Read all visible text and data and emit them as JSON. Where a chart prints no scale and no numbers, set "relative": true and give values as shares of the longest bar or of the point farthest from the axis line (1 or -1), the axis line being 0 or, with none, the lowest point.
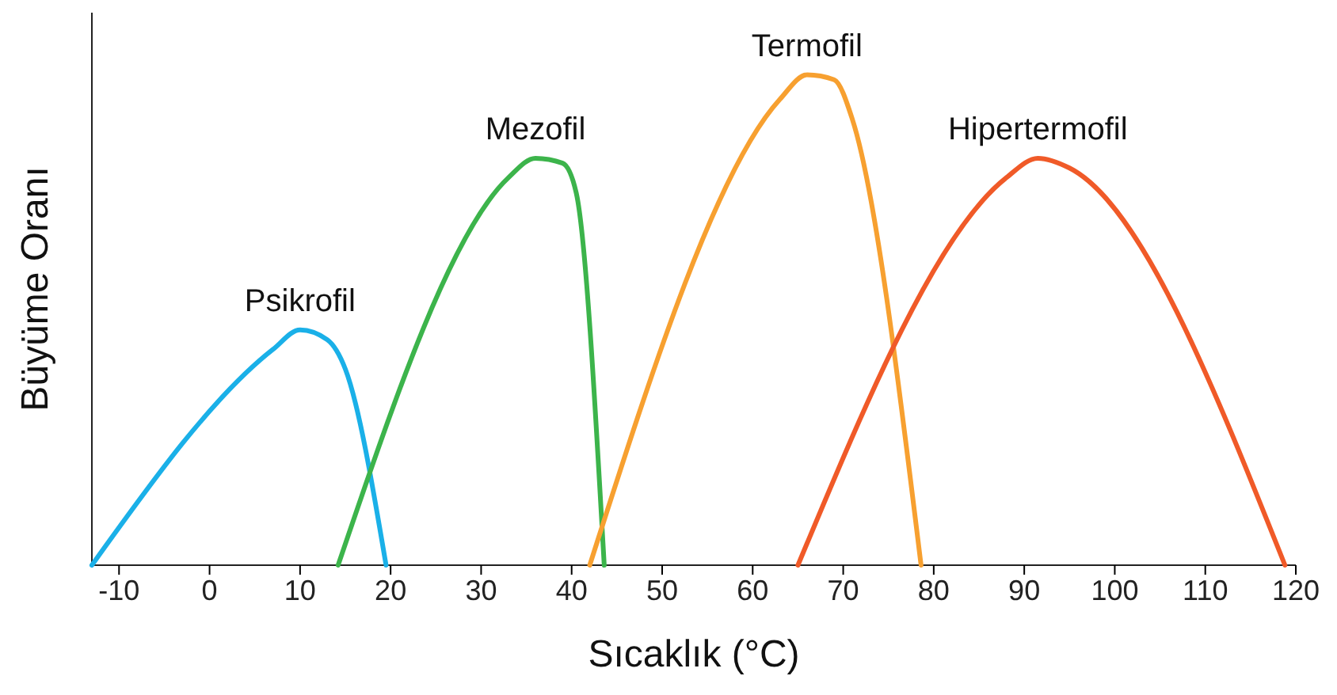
{
  "chart_data": {
    "type": "line",
    "relative": true,
    "xlabel": "Sıcaklık (°C)",
    "ylabel": "Büyüme Oranı",
    "xlim": [
      -13,
      120
    ],
    "xticks": [
      -10,
      0,
      10,
      20,
      30,
      40,
      50,
      60,
      70,
      80,
      90,
      100,
      110,
      120
    ],
    "marker": "none",
    "line_style": "solid",
    "legend": false,
    "grid": false,
    "series": [
      {
        "name": "Psikrofil",
        "color": "#1ab0e8",
        "x": [
          -13,
          7,
          10,
          13,
          15,
          19.5
        ],
        "values": [
          0,
          0.44,
          0.48,
          0.46,
          0.4,
          0
        ]
      },
      {
        "name": "Mezofil",
        "color": "#3cb44b",
        "x": [
          14.2,
          33,
          36,
          39,
          40.5,
          43.6
        ],
        "values": [
          0,
          0.79,
          0.83,
          0.82,
          0.76,
          0
        ]
      },
      {
        "name": "Termofil",
        "color": "#f7a030",
        "x": [
          42,
          63,
          66,
          69,
          71,
          78.6
        ],
        "values": [
          0,
          0.95,
          1,
          0.99,
          0.91,
          0
        ]
      },
      {
        "name": "Hipertermofil",
        "color": "#f05a28",
        "x": [
          65,
          88,
          91.5,
          95,
          118.8
        ],
        "values": [
          0,
          0.79,
          0.83,
          0.81,
          0
        ]
      }
    ]
  }
}
